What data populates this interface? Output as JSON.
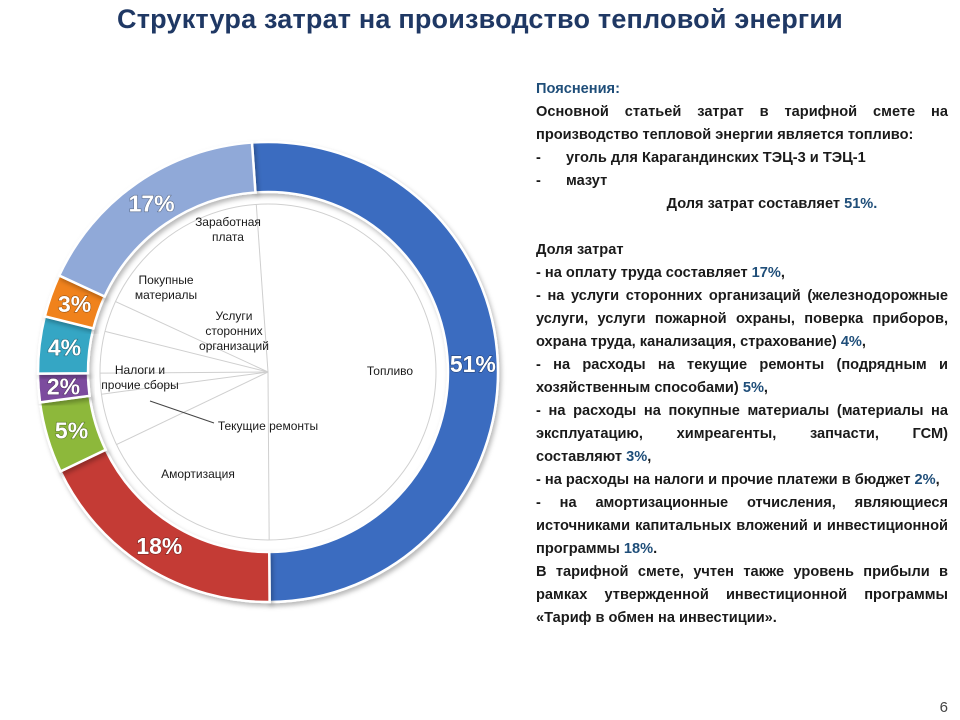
{
  "title": "Структура затрат на производство тепловой энергии",
  "page_number": "6",
  "chart_data": {
    "type": "pie",
    "categories": [
      "Топливо",
      "Амортизация",
      "Текущие ремонты",
      "Налоги и прочие сборы",
      "Услуги сторонних организаций",
      "Покупные материалы",
      "Заработная плата"
    ],
    "values": [
      51,
      18,
      5,
      2,
      4,
      3,
      17
    ],
    "value_labels": [
      "51%",
      "18%",
      "5%",
      "2%",
      "4%",
      "3%",
      "17%"
    ],
    "inner_labels": [
      "Топливо",
      "Амортизация",
      "Текущие ремонты",
      "Налоги и\nпрочие сборы",
      "Услуги\nсторонних\nорганизаций",
      "Покупные\nматериалы",
      "Заработная\nплата"
    ],
    "colors": [
      "#3a6cc0",
      "#c43a36",
      "#8db83a",
      "#7b4c9e",
      "#34a6c4",
      "#f0821c",
      "#90a9d8"
    ]
  },
  "notes": {
    "heading": "Пояснения:",
    "intro": "Основной статьей затрат в тарифной смете на производство тепловой энергии является топливо:",
    "bullet_mark": "-",
    "bullets": [
      "уголь для Карагандинских ТЭЦ-3 и ТЭЦ-1",
      "мазут"
    ],
    "fuel_share_text": "Доля затрат составляет ",
    "fuel_share_value": "51%.",
    "shares_heading": "Доля затрат",
    "items": [
      {
        "text": "-  на оплату труда составляет ",
        "value": "17%",
        "tail": ","
      },
      {
        "text": "- на услуги сторонних организаций (железнодорожные услуги, услуги пожарной охраны, поверка приборов, охрана труда, канализация, страхование) ",
        "value": "4%",
        "tail": ","
      },
      {
        "text": " - на расходы на текущие ремонты (подрядным и хозяйственным способами) ",
        "value": "5%",
        "tail": ","
      },
      {
        "text": " - на расходы на покупные материалы (материалы на эксплуатацию, химреагенты, запчасти, ГСМ) составляют ",
        "value": "3%",
        "tail": ","
      },
      {
        "text": "- на расходы на налоги и прочие платежи в бюджет ",
        "value": "2%",
        "tail": ","
      },
      {
        "text": " - на амортизационные отчисления, являющиеся источниками капитальных вложений и инвестиционной программы ",
        "value": "18%",
        "tail": "."
      }
    ],
    "final": "В тарифной смете, учтен также уровень прибыли в рамках утвержденной инвестиционной программы «Тариф в обмен на инвестиции»."
  }
}
